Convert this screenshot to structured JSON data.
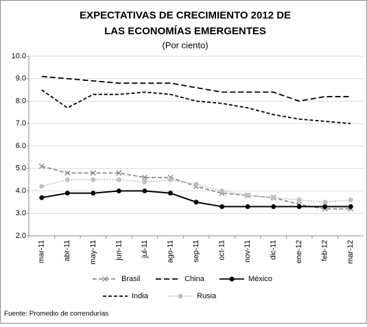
{
  "chart_data": {
    "type": "line",
    "title": "EXPECTATIVAS DE CRECIMIENTO 2012 DE",
    "title_line2": "LAS ECONOMÍAS EMERGENTES",
    "subtitle": "(Por ciento)",
    "source": "Fuente: Promedio de correndurías",
    "categories": [
      "mar-11",
      "abr-11",
      "may-11",
      "jun-11",
      "jul-11",
      "ago-11",
      "sep-11",
      "oct-11",
      "nov-11",
      "dic-11",
      "ene-12",
      "feb-12",
      "mar-12"
    ],
    "series": [
      {
        "name": "Brasil",
        "color": "#8c8c8c",
        "dash": "6,3",
        "marker": "x",
        "values": [
          5.1,
          4.8,
          4.8,
          4.8,
          4.6,
          4.6,
          4.2,
          3.9,
          3.8,
          3.7,
          3.4,
          3.2,
          3.2
        ]
      },
      {
        "name": "China",
        "color": "#000000",
        "dash": "8,4",
        "marker": "none",
        "values": [
          9.1,
          9.0,
          8.9,
          8.8,
          8.8,
          8.8,
          8.6,
          8.4,
          8.4,
          8.4,
          8.0,
          8.2,
          8.2
        ]
      },
      {
        "name": "México",
        "color": "#000000",
        "dash": "none",
        "marker": "circle",
        "values": [
          3.7,
          3.9,
          3.9,
          4.0,
          4.0,
          3.9,
          3.5,
          3.3,
          3.3,
          3.3,
          3.3,
          3.3,
          3.3
        ]
      },
      {
        "name": "India",
        "color": "#000000",
        "dash": "5,3",
        "marker": "none",
        "values": [
          8.5,
          7.7,
          8.3,
          8.3,
          8.4,
          8.3,
          8.0,
          7.9,
          7.7,
          7.4,
          7.2,
          7.1,
          7.0
        ]
      },
      {
        "name": "Rusia",
        "color": "#bfbfbf",
        "dash": "2,2",
        "marker": "circle",
        "values": [
          4.2,
          4.5,
          4.5,
          4.5,
          4.4,
          4.5,
          4.3,
          4.0,
          3.8,
          3.7,
          3.6,
          3.5,
          3.6
        ]
      }
    ],
    "ylim": [
      2,
      10
    ],
    "yticks": [
      {
        "value": 2,
        "label": "2.0"
      },
      {
        "value": 3,
        "label": "3.0"
      },
      {
        "value": 4,
        "label": "4.0"
      },
      {
        "value": 5,
        "label": "5.0"
      },
      {
        "value": 6,
        "label": "6.0"
      },
      {
        "value": 7,
        "label": "7.0"
      },
      {
        "value": 8,
        "label": "8.0"
      },
      {
        "value": 9,
        "label": "9.0"
      },
      {
        "value": 10,
        "label": "10.0"
      }
    ],
    "grid": true
  }
}
